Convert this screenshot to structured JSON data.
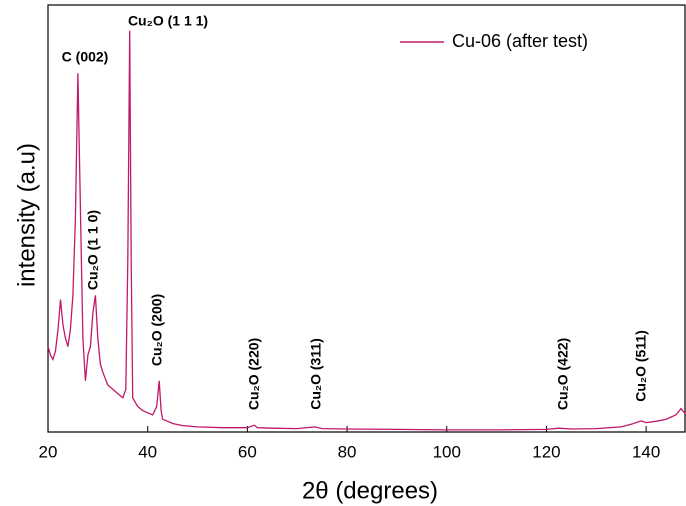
{
  "chart_data": {
    "type": "line",
    "x_label": "2θ (degrees)",
    "y_label": "intensity (a.u)",
    "xlim": [
      20,
      148
    ],
    "ylim": [
      0,
      100
    ],
    "xticks": [
      20,
      40,
      60,
      80,
      100,
      120,
      140
    ],
    "legend": "upper right",
    "series": [
      {
        "name": "Cu-06 (after test)",
        "color": "#c0186a",
        "x": [
          20,
          20.5,
          21,
          21.5,
          22,
          22.5,
          23,
          23.5,
          24,
          24.5,
          25,
          25.5,
          26,
          26.3,
          26.7,
          27,
          27.5,
          28,
          28.5,
          29,
          29.5,
          30,
          30.5,
          31,
          32,
          33,
          34,
          35,
          35.6,
          36,
          36.4,
          36.7,
          37,
          38,
          39,
          40,
          41,
          41.8,
          42.3,
          42.7,
          43,
          44,
          45,
          47,
          50,
          55,
          60,
          61.4,
          62,
          65,
          70,
          73.5,
          75,
          80,
          90,
          100,
          110,
          120,
          122.5,
          125,
          130,
          135,
          137,
          139,
          140,
          142,
          144,
          146,
          147,
          148
        ],
        "values": [
          20,
          18,
          17,
          19,
          24,
          31,
          25,
          22,
          20,
          24,
          32,
          50,
          84,
          65,
          40,
          22,
          12,
          18,
          20,
          28,
          32,
          22,
          16,
          14,
          11,
          10,
          9,
          8,
          10,
          40,
          94,
          40,
          8,
          6,
          5,
          4.5,
          4,
          6,
          12,
          5,
          3,
          2.5,
          2,
          1.5,
          1.2,
          1,
          1,
          1.6,
          1,
          0.9,
          0.8,
          1.2,
          0.8,
          0.7,
          0.6,
          0.5,
          0.5,
          0.6,
          0.9,
          0.7,
          0.8,
          1.2,
          1.8,
          2.6,
          2.2,
          2.5,
          3,
          4,
          5.5,
          4
        ]
      }
    ],
    "annotations": [
      "C (002)",
      "Cu₂O (1 1 1)",
      "Cu₂O (1 1 0)",
      "Cu₂O (200)",
      "Cu₂O (220)",
      "Cu₂O (311)",
      "Cu₂O (422)",
      "Cu₂O (511)"
    ]
  }
}
